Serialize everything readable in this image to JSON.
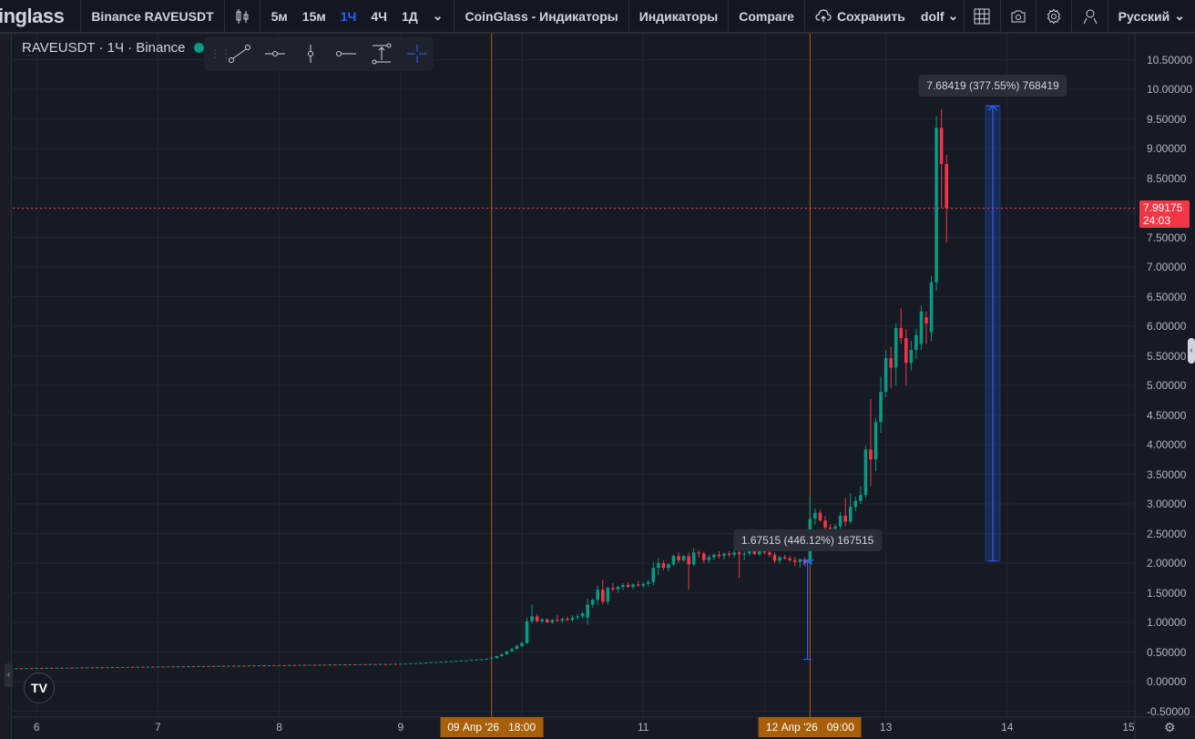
{
  "header": {
    "logo": "inglass",
    "symbol": "Binance RAVEUSDT",
    "timeframes": [
      "5м",
      "15м",
      "1Ч",
      "4Ч",
      "1Д"
    ],
    "active_timeframe": "1Ч",
    "indicators_preset": "CoinGlass - Индикаторы",
    "indicators": "Индикаторы",
    "compare": "Compare",
    "save": "Сохранить",
    "layout_name": "dolf",
    "language": "Русский"
  },
  "legend": {
    "title": "RAVEUSDT · 1Ч · Binance"
  },
  "colors": {
    "up": "#089981",
    "down": "#f23645",
    "accent": "#2962ff",
    "crosshair": "#a85f09",
    "background": "#161a25"
  },
  "price_tag": {
    "price": "7.99175",
    "countdown": "24:03"
  },
  "measurements": [
    {
      "from": 0.3755,
      "to": 2.0506,
      "label": "1.67515 (446.12%) 167515"
    },
    {
      "from": 2.0353,
      "to": 9.7195,
      "label": "7.68419 (377.55%) 768419"
    }
  ],
  "time_badges": [
    "09 Апр '26   18:00",
    "12 Апр '26   09:00"
  ],
  "chart_data": {
    "type": "candlestick",
    "interval": "1Ч",
    "x_ticks": [
      "6",
      "7",
      "8",
      "9",
      "11",
      "13",
      "14",
      "15"
    ],
    "y_ticks": [
      "10.50000",
      "10.00000",
      "9.50000",
      "9.00000",
      "8.50000",
      "8.00000",
      "7.50000",
      "7.00000",
      "6.50000",
      "6.00000",
      "5.50000",
      "5.00000",
      "4.50000",
      "4.00000",
      "3.50000",
      "3.00000",
      "2.50000",
      "2.00000",
      "1.50000",
      "1.00000",
      "0.50000",
      "0.00000",
      "-0.50000"
    ],
    "ylim": [
      -0.5,
      10.5
    ],
    "last_price": 7.99175,
    "candles": [
      [
        0.222,
        0.228,
        0.219,
        0.226
      ],
      [
        0.226,
        0.228,
        0.221,
        0.224
      ],
      [
        0.224,
        0.23,
        0.221,
        0.228
      ],
      [
        0.228,
        0.23,
        0.223,
        0.226
      ],
      [
        0.226,
        0.232,
        0.223,
        0.23
      ],
      [
        0.23,
        0.232,
        0.225,
        0.228
      ],
      [
        0.228,
        0.234,
        0.225,
        0.232
      ],
      [
        0.232,
        0.234,
        0.227,
        0.23
      ],
      [
        0.23,
        0.236,
        0.227,
        0.234
      ],
      [
        0.234,
        0.236,
        0.229,
        0.232
      ],
      [
        0.232,
        0.238,
        0.229,
        0.236
      ],
      [
        0.236,
        0.238,
        0.231,
        0.234
      ],
      [
        0.234,
        0.24,
        0.231,
        0.238
      ],
      [
        0.238,
        0.24,
        0.233,
        0.236
      ],
      [
        0.236,
        0.242,
        0.233,
        0.24
      ],
      [
        0.24,
        0.242,
        0.235,
        0.238
      ],
      [
        0.238,
        0.244,
        0.235,
        0.242
      ],
      [
        0.242,
        0.244,
        0.237,
        0.24
      ],
      [
        0.24,
        0.246,
        0.237,
        0.244
      ],
      [
        0.244,
        0.246,
        0.239,
        0.242
      ],
      [
        0.242,
        0.248,
        0.239,
        0.246
      ],
      [
        0.246,
        0.248,
        0.241,
        0.244
      ],
      [
        0.244,
        0.25,
        0.241,
        0.248
      ],
      [
        0.248,
        0.25,
        0.243,
        0.246
      ],
      [
        0.246,
        0.252,
        0.243,
        0.25
      ],
      [
        0.25,
        0.252,
        0.245,
        0.248
      ],
      [
        0.248,
        0.254,
        0.245,
        0.252
      ],
      [
        0.252,
        0.254,
        0.247,
        0.25
      ],
      [
        0.25,
        0.256,
        0.247,
        0.254
      ],
      [
        0.254,
        0.256,
        0.249,
        0.252
      ],
      [
        0.252,
        0.258,
        0.249,
        0.256
      ],
      [
        0.256,
        0.258,
        0.251,
        0.254
      ],
      [
        0.254,
        0.26,
        0.251,
        0.258
      ],
      [
        0.258,
        0.26,
        0.253,
        0.256
      ],
      [
        0.256,
        0.262,
        0.253,
        0.26
      ],
      [
        0.26,
        0.262,
        0.255,
        0.258
      ],
      [
        0.258,
        0.264,
        0.255,
        0.262
      ],
      [
        0.262,
        0.264,
        0.257,
        0.26
      ],
      [
        0.26,
        0.266,
        0.257,
        0.264
      ],
      [
        0.264,
        0.266,
        0.259,
        0.262
      ],
      [
        0.262,
        0.268,
        0.259,
        0.266
      ],
      [
        0.266,
        0.268,
        0.261,
        0.264
      ],
      [
        0.264,
        0.27,
        0.261,
        0.268
      ],
      [
        0.268,
        0.27,
        0.263,
        0.266
      ],
      [
        0.266,
        0.272,
        0.263,
        0.27
      ],
      [
        0.27,
        0.272,
        0.265,
        0.268
      ],
      [
        0.268,
        0.274,
        0.265,
        0.272
      ],
      [
        0.272,
        0.274,
        0.267,
        0.27
      ],
      [
        0.27,
        0.276,
        0.267,
        0.274
      ],
      [
        0.274,
        0.276,
        0.269,
        0.272
      ],
      [
        0.272,
        0.278,
        0.269,
        0.276
      ],
      [
        0.276,
        0.278,
        0.271,
        0.274
      ],
      [
        0.274,
        0.28,
        0.271,
        0.278
      ],
      [
        0.278,
        0.28,
        0.273,
        0.276
      ],
      [
        0.276,
        0.282,
        0.273,
        0.28
      ],
      [
        0.28,
        0.282,
        0.275,
        0.278
      ],
      [
        0.278,
        0.284,
        0.275,
        0.282
      ],
      [
        0.282,
        0.284,
        0.277,
        0.28
      ],
      [
        0.28,
        0.286,
        0.277,
        0.284
      ],
      [
        0.284,
        0.286,
        0.279,
        0.282
      ],
      [
        0.282,
        0.288,
        0.279,
        0.286
      ],
      [
        0.286,
        0.288,
        0.281,
        0.284
      ],
      [
        0.284,
        0.29,
        0.281,
        0.288
      ],
      [
        0.288,
        0.29,
        0.283,
        0.286
      ],
      [
        0.286,
        0.292,
        0.283,
        0.29
      ],
      [
        0.29,
        0.292,
        0.285,
        0.288
      ],
      [
        0.288,
        0.294,
        0.285,
        0.292
      ],
      [
        0.292,
        0.294,
        0.287,
        0.29
      ],
      [
        0.29,
        0.296,
        0.287,
        0.294
      ],
      [
        0.294,
        0.296,
        0.289,
        0.292
      ],
      [
        0.292,
        0.298,
        0.289,
        0.296
      ],
      [
        0.296,
        0.298,
        0.291,
        0.294
      ],
      [
        0.294,
        0.3,
        0.291,
        0.298
      ],
      [
        0.298,
        0.3,
        0.293,
        0.296
      ],
      [
        0.296,
        0.302,
        0.293,
        0.3
      ],
      [
        0.3,
        0.302,
        0.295,
        0.298
      ],
      [
        0.298,
        0.304,
        0.295,
        0.302
      ],
      [
        0.302,
        0.304,
        0.297,
        0.305
      ],
      [
        0.305,
        0.312,
        0.302,
        0.31
      ],
      [
        0.31,
        0.314,
        0.306,
        0.312
      ],
      [
        0.312,
        0.32,
        0.309,
        0.318
      ],
      [
        0.318,
        0.322,
        0.314,
        0.32
      ],
      [
        0.32,
        0.328,
        0.317,
        0.326
      ],
      [
        0.326,
        0.331,
        0.322,
        0.33
      ],
      [
        0.33,
        0.338,
        0.327,
        0.336
      ],
      [
        0.336,
        0.341,
        0.332,
        0.34
      ],
      [
        0.34,
        0.348,
        0.337,
        0.346
      ],
      [
        0.346,
        0.351,
        0.342,
        0.35
      ],
      [
        0.35,
        0.358,
        0.347,
        0.356
      ],
      [
        0.356,
        0.362,
        0.352,
        0.36
      ],
      [
        0.36,
        0.368,
        0.357,
        0.366
      ],
      [
        0.366,
        0.374,
        0.362,
        0.372
      ],
      [
        0.372,
        0.38,
        0.369,
        0.378
      ],
      [
        0.378,
        0.388,
        0.374,
        0.385
      ],
      [
        0.385,
        0.42,
        0.38,
        0.4
      ],
      [
        0.4,
        0.44,
        0.39,
        0.43
      ],
      [
        0.43,
        0.47,
        0.42,
        0.46
      ],
      [
        0.46,
        0.52,
        0.45,
        0.51
      ],
      [
        0.51,
        0.57,
        0.5,
        0.55
      ],
      [
        0.55,
        0.63,
        0.54,
        0.6
      ],
      [
        0.6,
        0.68,
        0.58,
        0.65
      ],
      [
        0.65,
        1.08,
        0.63,
        1.02
      ],
      [
        1.02,
        1.3,
        0.98,
        1.1
      ],
      [
        1.1,
        1.14,
        1.0,
        1.02
      ],
      [
        1.02,
        1.08,
        0.98,
        1.05
      ],
      [
        1.05,
        1.07,
        0.99,
        1.0
      ],
      [
        1.0,
        1.06,
        0.97,
        1.04
      ],
      [
        1.04,
        1.12,
        1.01,
        1.03
      ],
      [
        1.03,
        1.08,
        0.99,
        1.06
      ],
      [
        1.06,
        1.1,
        1.02,
        1.04
      ],
      [
        1.04,
        1.12,
        1.02,
        1.08
      ],
      [
        1.08,
        1.14,
        1.04,
        1.1
      ],
      [
        1.1,
        1.18,
        1.06,
        1.15
      ],
      [
        1.08,
        1.4,
        0.96,
        1.3
      ],
      [
        1.3,
        1.4,
        1.25,
        1.38
      ],
      [
        1.38,
        1.62,
        1.3,
        1.55
      ],
      [
        1.55,
        1.72,
        1.3,
        1.35
      ],
      [
        1.35,
        1.6,
        1.3,
        1.58
      ],
      [
        1.58,
        1.66,
        1.52,
        1.56
      ],
      [
        1.56,
        1.62,
        1.5,
        1.6
      ],
      [
        1.6,
        1.66,
        1.54,
        1.63
      ],
      [
        1.63,
        1.68,
        1.58,
        1.6
      ],
      [
        1.6,
        1.66,
        1.56,
        1.64
      ],
      [
        1.64,
        1.7,
        1.6,
        1.62
      ],
      [
        1.62,
        1.68,
        1.58,
        1.65
      ],
      [
        1.65,
        1.72,
        1.6,
        1.68
      ],
      [
        1.68,
        2.02,
        1.62,
        1.92
      ],
      [
        1.92,
        2.08,
        1.8,
        2.0
      ],
      [
        2.0,
        2.05,
        1.88,
        1.92
      ],
      [
        1.92,
        2.0,
        1.86,
        1.98
      ],
      [
        1.98,
        2.15,
        1.95,
        2.12
      ],
      [
        2.12,
        2.18,
        2.0,
        2.05
      ],
      [
        2.05,
        2.14,
        2.02,
        2.12
      ],
      [
        2.12,
        2.18,
        1.55,
        1.98
      ],
      [
        1.98,
        2.25,
        1.95,
        2.18
      ],
      [
        2.18,
        2.22,
        2.1,
        2.16
      ],
      [
        2.16,
        2.2,
        2.0,
        2.05
      ],
      [
        2.05,
        2.14,
        2.0,
        2.1
      ],
      [
        2.1,
        2.16,
        2.05,
        2.14
      ],
      [
        2.14,
        2.2,
        2.08,
        2.12
      ],
      [
        2.12,
        2.18,
        2.06,
        2.16
      ],
      [
        2.16,
        2.2,
        2.1,
        2.14
      ],
      [
        2.14,
        2.22,
        2.1,
        2.18
      ],
      [
        2.18,
        2.22,
        1.75,
        2.15
      ],
      [
        2.15,
        2.2,
        2.05,
        2.16
      ],
      [
        2.16,
        2.22,
        2.12,
        2.2
      ],
      [
        2.2,
        2.24,
        2.14,
        2.15
      ],
      [
        2.15,
        2.22,
        2.12,
        2.2
      ],
      [
        2.2,
        2.26,
        2.15,
        2.18
      ],
      [
        2.18,
        2.22,
        2.1,
        2.14
      ],
      [
        2.14,
        2.18,
        2.0,
        2.04
      ],
      [
        2.04,
        2.12,
        2.0,
        2.1
      ],
      [
        2.1,
        2.14,
        2.06,
        2.08
      ],
      [
        2.08,
        2.12,
        2.02,
        2.05
      ],
      [
        2.05,
        2.1,
        1.95,
        2.02
      ],
      [
        2.02,
        2.08,
        1.92,
        2.06
      ],
      [
        2.06,
        2.1,
        1.95,
        2.0
      ],
      [
        2.0,
        3.12,
        1.98,
        2.75
      ],
      [
        2.75,
        2.92,
        2.65,
        2.85
      ],
      [
        2.85,
        2.9,
        2.7,
        2.72
      ],
      [
        2.72,
        2.8,
        2.55,
        2.6
      ],
      [
        2.6,
        2.66,
        2.5,
        2.58
      ],
      [
        2.58,
        2.66,
        2.52,
        2.62
      ],
      [
        2.62,
        2.86,
        2.58,
        2.8
      ],
      [
        2.8,
        3.1,
        2.62,
        2.7
      ],
      [
        2.7,
        3.18,
        2.66,
        2.95
      ],
      [
        2.95,
        3.12,
        2.88,
        3.05
      ],
      [
        3.05,
        3.3,
        3.0,
        3.15
      ],
      [
        3.15,
        3.98,
        3.1,
        3.92
      ],
      [
        3.92,
        4.77,
        3.3,
        3.75
      ],
      [
        3.75,
        4.45,
        3.55,
        4.38
      ],
      [
        4.38,
        5.15,
        4.2,
        4.89
      ],
      [
        4.89,
        5.6,
        4.8,
        5.46
      ],
      [
        5.46,
        5.65,
        4.95,
        5.3
      ],
      [
        5.3,
        6.05,
        5.0,
        5.97
      ],
      [
        5.97,
        6.3,
        5.7,
        5.8
      ],
      [
        5.8,
        5.95,
        5.0,
        5.38
      ],
      [
        5.38,
        5.75,
        5.25,
        5.6
      ],
      [
        5.6,
        5.95,
        5.45,
        5.85
      ],
      [
        5.7,
        6.35,
        5.6,
        6.25
      ],
      [
        6.15,
        6.25,
        5.7,
        6.05
      ],
      [
        5.9,
        6.85,
        5.75,
        6.74
      ],
      [
        6.74,
        9.55,
        6.6,
        9.35
      ],
      [
        9.35,
        9.66,
        8.0,
        8.74
      ],
      [
        8.74,
        8.89,
        7.41,
        7.99175
      ]
    ]
  }
}
